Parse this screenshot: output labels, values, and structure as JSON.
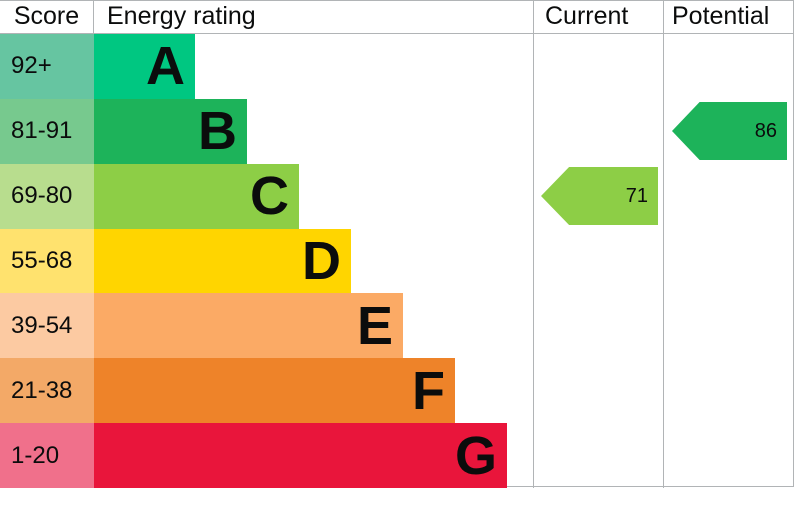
{
  "header": {
    "score": "Score",
    "energy_rating": "Energy rating",
    "current": "Current",
    "potential": "Potential"
  },
  "bands": [
    {
      "letter": "A",
      "score": "92+",
      "color": "#00c781",
      "score_color": "#66c5a1"
    },
    {
      "letter": "B",
      "score": "81-91",
      "color": "#1db35a",
      "score_color": "#77c98e"
    },
    {
      "letter": "C",
      "score": "69-80",
      "color": "#8dce46",
      "score_color": "#b8dd8e"
    },
    {
      "letter": "D",
      "score": "55-68",
      "color": "#ffd500",
      "score_color": "#ffe26e"
    },
    {
      "letter": "E",
      "score": "39-54",
      "color": "#fbaa65",
      "score_color": "#fccaa2"
    },
    {
      "letter": "F",
      "score": "21-38",
      "color": "#ee8329",
      "score_color": "#f3a967"
    },
    {
      "letter": "G",
      "score": "1-20",
      "color": "#e9153b",
      "score_color": "#f0708b"
    }
  ],
  "current": {
    "value": "71",
    "color": "#8dce46"
  },
  "potential": {
    "value": "86",
    "color": "#1db35a"
  },
  "colors": {
    "border": "#b1b4b6",
    "text": "#0b0c0c"
  },
  "chart_data": {
    "type": "bar",
    "title": "Energy rating",
    "categories": [
      "A",
      "B",
      "C",
      "D",
      "E",
      "F",
      "G"
    ],
    "score_ranges": [
      "92+",
      "81-91",
      "69-80",
      "55-68",
      "39-54",
      "21-38",
      "1-20"
    ],
    "band_colors": [
      "#00c781",
      "#1db35a",
      "#8dce46",
      "#ffd500",
      "#fbaa65",
      "#ee8329",
      "#e9153b"
    ],
    "markers": [
      {
        "label": "Current",
        "value": 71,
        "band": "C",
        "color": "#8dce46"
      },
      {
        "label": "Potential",
        "value": 86,
        "band": "B",
        "color": "#1db35a"
      }
    ],
    "layout": {
      "orientation": "horizontal",
      "bar_lengths_increase_downward": true,
      "columns": [
        "Score",
        "Energy rating",
        "Current",
        "Potential"
      ],
      "grid": "column dividers and outer border only"
    }
  }
}
